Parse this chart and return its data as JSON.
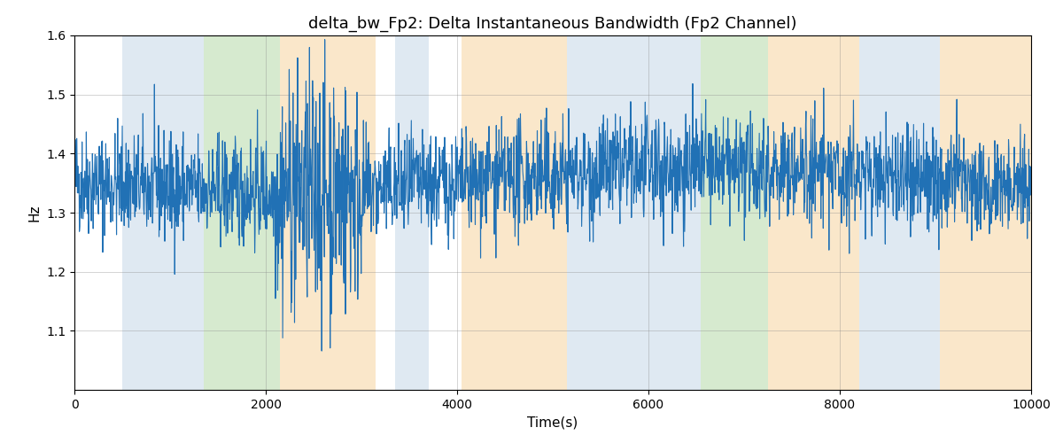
{
  "title": "delta_bw_Fp2: Delta Instantaneous Bandwidth (Fp2 Channel)",
  "xlabel": "Time(s)",
  "ylabel": "Hz",
  "xlim": [
    0,
    10000
  ],
  "ylim": [
    1.0,
    1.6
  ],
  "yticks": [
    1.1,
    1.2,
    1.3,
    1.4,
    1.5,
    1.6
  ],
  "line_color": "#2171b5",
  "line_width": 0.8,
  "bg_regions": [
    {
      "xmin": 500,
      "xmax": 1350,
      "color": "#c6d8e8",
      "alpha": 0.55
    },
    {
      "xmin": 1350,
      "xmax": 2150,
      "color": "#b5d9a8",
      "alpha": 0.55
    },
    {
      "xmin": 2150,
      "xmax": 3150,
      "color": "#f7d4a0",
      "alpha": 0.55
    },
    {
      "xmin": 3350,
      "xmax": 3700,
      "color": "#c6d8e8",
      "alpha": 0.55
    },
    {
      "xmin": 4050,
      "xmax": 5150,
      "color": "#f7d4a0",
      "alpha": 0.55
    },
    {
      "xmin": 5150,
      "xmax": 6150,
      "color": "#c6d8e8",
      "alpha": 0.55
    },
    {
      "xmin": 6150,
      "xmax": 6550,
      "color": "#c6d8e8",
      "alpha": 0.55
    },
    {
      "xmin": 6550,
      "xmax": 7250,
      "color": "#b5d9a8",
      "alpha": 0.55
    },
    {
      "xmin": 7250,
      "xmax": 8200,
      "color": "#f7d4a0",
      "alpha": 0.55
    },
    {
      "xmin": 8200,
      "xmax": 9050,
      "color": "#c6d8e8",
      "alpha": 0.55
    },
    {
      "xmin": 9050,
      "xmax": 10000,
      "color": "#f7d4a0",
      "alpha": 0.55
    }
  ],
  "grid": true,
  "figsize": [
    12,
    5
  ],
  "dpi": 100,
  "seed": 42,
  "n_points": 2500
}
